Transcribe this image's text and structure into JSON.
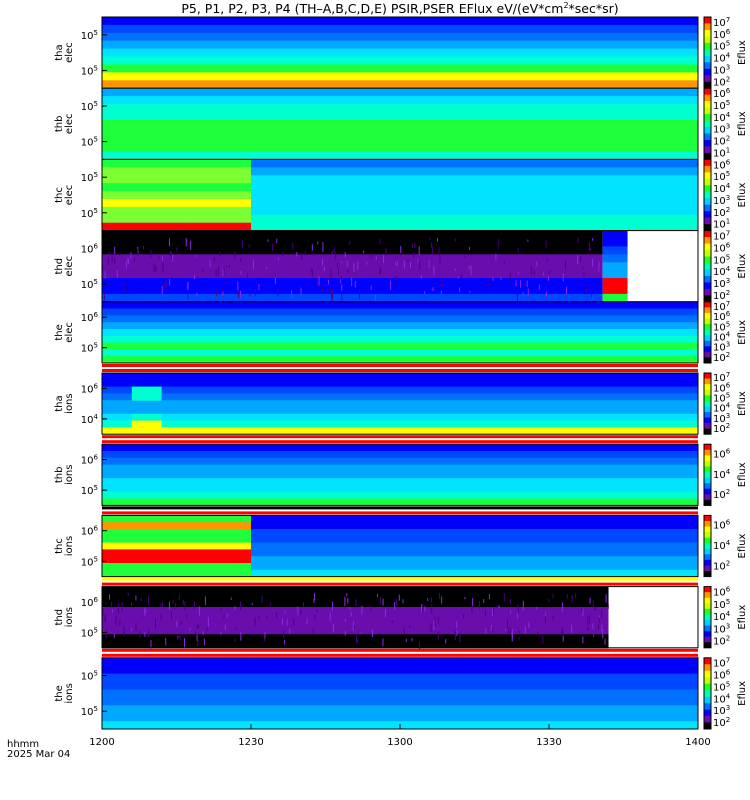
{
  "title_parts": [
    "P5, P1, P2, P3, P4 (TH–A,B,C,D,E) PSIR,PSER EFlux eV/(eV*cm",
    "2",
    "*sec*sr)"
  ],
  "time_axis": {
    "labels": [
      "1200",
      "1230",
      "1300",
      "1330",
      "1400"
    ],
    "label_fracs": [
      0,
      0.25,
      0.5,
      0.75,
      1
    ],
    "name": "hhmm",
    "date": "2025 Mar 04"
  },
  "colors": {
    "black": "#000000",
    "white": "#ffffff",
    "purple": "#6a0dad",
    "blue": "#0000ff",
    "blue2": "#0048ff",
    "blue3": "#0070ff",
    "ltblue": "#00a8ff",
    "cyan": "#00e4ff",
    "aqua": "#00ffd0",
    "green": "#1eff3c",
    "lgreen": "#7cff32",
    "yellow": "#ffff00",
    "orange": "#ff9600",
    "red": "#ff0000"
  },
  "chart_data": [
    {
      "type": "heatmap",
      "probe": "tha",
      "species": "elec",
      "ylabel": [
        "tha",
        "elec"
      ],
      "y_ticks": [
        {
          "base": "10",
          "exp": "5"
        },
        {
          "base": "10",
          "exp": "5"
        }
      ],
      "colorbar_ticks": [
        {
          "base": "10",
          "exp": "7"
        },
        {
          "base": "10",
          "exp": "6"
        },
        {
          "base": "10",
          "exp": "5"
        },
        {
          "base": "10",
          "exp": "4"
        },
        {
          "base": "10",
          "exp": "3"
        },
        {
          "base": "10",
          "exp": "2"
        }
      ],
      "colorbar_label": "Eflux",
      "rows": [
        [
          "blue",
          "blue"
        ],
        [
          "blue2",
          "blue2"
        ],
        [
          "blue3",
          "blue3"
        ],
        [
          "ltblue",
          "ltblue"
        ],
        [
          "cyan",
          "cyan"
        ],
        [
          "aqua",
          "aqua"
        ],
        [
          "green",
          "green"
        ],
        [
          "yellow",
          "yellow"
        ],
        [
          "orange",
          "orange"
        ]
      ]
    },
    {
      "type": "heatmap",
      "probe": "thb",
      "species": "elec",
      "ylabel": [
        "thb",
        "elec"
      ],
      "y_ticks": [
        {
          "base": "10",
          "exp": "5"
        },
        {
          "base": "10",
          "exp": "5"
        }
      ],
      "colorbar_ticks": [
        {
          "base": "10",
          "exp": "6"
        },
        {
          "base": "10",
          "exp": "5"
        },
        {
          "base": "10",
          "exp": "4"
        },
        {
          "base": "10",
          "exp": "3"
        },
        {
          "base": "10",
          "exp": "2"
        },
        {
          "base": "10",
          "exp": "1"
        }
      ],
      "colorbar_label": "Eflux",
      "rows": [
        [
          "ltblue",
          "ltblue"
        ],
        [
          "cyan",
          "cyan"
        ],
        [
          "aqua",
          "aqua"
        ],
        [
          "aqua",
          "aqua"
        ],
        [
          "green",
          "green"
        ],
        [
          "green",
          "green"
        ],
        [
          "green",
          "green"
        ],
        [
          "green",
          "green"
        ],
        [
          "aqua",
          "aqua"
        ]
      ]
    },
    {
      "type": "heatmap",
      "probe": "thc",
      "species": "elec",
      "ylabel": [
        "thc",
        "elec"
      ],
      "y_ticks": [
        {
          "base": "10",
          "exp": "5"
        },
        {
          "base": "10",
          "exp": "5"
        }
      ],
      "colorbar_ticks": [
        {
          "base": "10",
          "exp": "6"
        },
        {
          "base": "10",
          "exp": "5"
        },
        {
          "base": "10",
          "exp": "4"
        },
        {
          "base": "10",
          "exp": "3"
        },
        {
          "base": "10",
          "exp": "2"
        },
        {
          "base": "10",
          "exp": "1"
        }
      ],
      "colorbar_label": "Eflux",
      "split": 0.25,
      "rows": [
        [
          "green",
          "blue3"
        ],
        [
          "lgreen",
          "ltblue"
        ],
        [
          "lgreen",
          "cyan"
        ],
        [
          "green",
          "cyan"
        ],
        [
          "lgreen",
          "cyan"
        ],
        [
          "yellow",
          "cyan"
        ],
        [
          "lgreen",
          "cyan"
        ],
        [
          "lgreen",
          "aqua"
        ],
        [
          "red",
          "aqua"
        ]
      ]
    },
    {
      "type": "heatmap",
      "probe": "thd",
      "species": "elec",
      "ylabel": [
        "thd",
        "elec"
      ],
      "y_ticks": [
        {
          "base": "10",
          "exp": "6"
        },
        {
          "base": "10",
          "exp": "5"
        }
      ],
      "colorbar_ticks": [
        {
          "base": "10",
          "exp": "7"
        },
        {
          "base": "10",
          "exp": "6"
        },
        {
          "base": "10",
          "exp": "5"
        },
        {
          "base": "10",
          "exp": "4"
        },
        {
          "base": "10",
          "exp": "3"
        },
        {
          "base": "10",
          "exp": "2"
        }
      ],
      "colorbar_label": "Eflux",
      "noisy": true,
      "blank_from": 0.882,
      "rows": [
        [
          "black",
          "blue"
        ],
        [
          "black",
          "blue"
        ],
        [
          "black",
          "blue2"
        ],
        [
          "purple",
          "blue3"
        ],
        [
          "purple",
          "ltblue"
        ],
        [
          "purple",
          "ltblue"
        ],
        [
          "blue",
          "red"
        ],
        [
          "blue",
          "red"
        ],
        [
          "blue2",
          "green"
        ]
      ]
    },
    {
      "type": "heatmap",
      "probe": "the",
      "species": "elec",
      "ylabel": [
        "the",
        "elec"
      ],
      "y_ticks": [
        {
          "base": "10",
          "exp": "6"
        },
        {
          "base": "10",
          "exp": "5"
        }
      ],
      "colorbar_ticks": [
        {
          "base": "10",
          "exp": "7"
        },
        {
          "base": "10",
          "exp": "6"
        },
        {
          "base": "10",
          "exp": "5"
        },
        {
          "base": "10",
          "exp": "4"
        },
        {
          "base": "10",
          "exp": "3"
        },
        {
          "base": "10",
          "exp": "2"
        }
      ],
      "colorbar_label": "Eflux",
      "stripe": [
        "red",
        "white",
        "red"
      ],
      "rows": [
        [
          "blue",
          "blue"
        ],
        [
          "blue2",
          "blue2"
        ],
        [
          "blue3",
          "blue3"
        ],
        [
          "ltblue",
          "ltblue"
        ],
        [
          "cyan",
          "cyan"
        ],
        [
          "aqua",
          "aqua"
        ],
        [
          "green",
          "green"
        ],
        [
          "aqua",
          "aqua"
        ],
        [
          "green",
          "green"
        ]
      ]
    },
    {
      "type": "heatmap",
      "probe": "tha",
      "species": "ions",
      "ylabel": [
        "tha",
        "ions"
      ],
      "y_ticks": [
        {
          "base": "10",
          "exp": "6"
        },
        {
          "base": "10",
          "exp": "4"
        }
      ],
      "colorbar_ticks": [
        {
          "base": "10",
          "exp": "7"
        },
        {
          "base": "10",
          "exp": "6"
        },
        {
          "base": "10",
          "exp": "5"
        },
        {
          "base": "10",
          "exp": "4"
        },
        {
          "base": "10",
          "exp": "3"
        },
        {
          "base": "10",
          "exp": "2"
        }
      ],
      "colorbar_label": "Eflux",
      "stripe": [
        "red",
        "white",
        "red"
      ],
      "spot": {
        "from": 0.05,
        "to": 0.1,
        "rows": [
          2,
          3,
          6,
          7,
          8
        ],
        "color": "aqua"
      },
      "rows": [
        [
          "blue",
          "blue"
        ],
        [
          "blue",
          "blue"
        ],
        [
          "blue2",
          "blue2"
        ],
        [
          "blue3",
          "blue3"
        ],
        [
          "ltblue",
          "ltblue"
        ],
        [
          "ltblue",
          "ltblue"
        ],
        [
          "cyan",
          "cyan"
        ],
        [
          "aqua",
          "aqua"
        ],
        [
          "yellow",
          "yellow"
        ]
      ]
    },
    {
      "type": "heatmap",
      "probe": "thb",
      "species": "ions",
      "ylabel": [
        "thb",
        "ions"
      ],
      "y_ticks": [
        {
          "base": "10",
          "exp": "6"
        },
        {
          "base": "10",
          "exp": "5"
        }
      ],
      "colorbar_ticks": [
        {
          "base": "10",
          "exp": "6"
        },
        {
          "base": "10",
          "exp": "4"
        },
        {
          "base": "10",
          "exp": "2"
        }
      ],
      "colorbar_label": "Eflux",
      "stripe": [
        "black",
        "white",
        "red"
      ],
      "rows": [
        [
          "blue",
          "blue"
        ],
        [
          "blue2",
          "blue2"
        ],
        [
          "blue3",
          "blue3"
        ],
        [
          "ltblue",
          "ltblue"
        ],
        [
          "ltblue",
          "ltblue"
        ],
        [
          "cyan",
          "cyan"
        ],
        [
          "cyan",
          "cyan"
        ],
        [
          "aqua",
          "aqua"
        ],
        [
          "green",
          "green"
        ]
      ]
    },
    {
      "type": "heatmap",
      "probe": "thc",
      "species": "ions",
      "ylabel": [
        "thc",
        "ions"
      ],
      "y_ticks": [
        {
          "base": "10",
          "exp": "6"
        },
        {
          "base": "10",
          "exp": "5"
        }
      ],
      "colorbar_ticks": [
        {
          "base": "10",
          "exp": "6"
        },
        {
          "base": "10",
          "exp": "4"
        },
        {
          "base": "10",
          "exp": "2"
        }
      ],
      "colorbar_label": "Eflux",
      "split": 0.25,
      "stripe": [
        "yellow",
        "white",
        "red"
      ],
      "rows": [
        [
          "green",
          "blue"
        ],
        [
          "orange",
          "blue"
        ],
        [
          "green",
          "blue2"
        ],
        [
          "green",
          "blue2"
        ],
        [
          "yellow",
          "blue3"
        ],
        [
          "red",
          "blue3"
        ],
        [
          "red",
          "ltblue"
        ],
        [
          "green",
          "ltblue"
        ],
        [
          "green",
          "cyan"
        ]
      ]
    },
    {
      "type": "heatmap",
      "probe": "thd",
      "species": "ions",
      "ylabel": [
        "thd",
        "ions"
      ],
      "y_ticks": [
        {
          "base": "10",
          "exp": "6"
        },
        {
          "base": "10",
          "exp": "5"
        }
      ],
      "colorbar_ticks": [
        {
          "base": "10",
          "exp": "6"
        },
        {
          "base": "10",
          "exp": "5"
        },
        {
          "base": "10",
          "exp": "4"
        },
        {
          "base": "10",
          "exp": "3"
        },
        {
          "base": "10",
          "exp": "2"
        }
      ],
      "colorbar_label": "Eflux",
      "noisy": true,
      "blank_from": 0.85,
      "stripe": [
        "red",
        "white",
        "red"
      ],
      "rows": [
        [
          "black",
          "black"
        ],
        [
          "black",
          "black"
        ],
        [
          "black",
          "black"
        ],
        [
          "purple",
          "purple"
        ],
        [
          "purple",
          "purple"
        ],
        [
          "purple",
          "purple"
        ],
        [
          "purple",
          "purple"
        ],
        [
          "black",
          "black"
        ],
        [
          "black",
          "black"
        ]
      ]
    },
    {
      "type": "heatmap",
      "probe": "the",
      "species": "ions",
      "ylabel": [
        "the",
        "ions"
      ],
      "y_ticks": [
        {
          "base": "10",
          "exp": "5"
        },
        {
          "base": "10",
          "exp": "5"
        }
      ],
      "colorbar_ticks": [
        {
          "base": "10",
          "exp": "7"
        },
        {
          "base": "10",
          "exp": "6"
        },
        {
          "base": "10",
          "exp": "5"
        },
        {
          "base": "10",
          "exp": "4"
        },
        {
          "base": "10",
          "exp": "3"
        },
        {
          "base": "10",
          "exp": "2"
        }
      ],
      "colorbar_label": "Eflux",
      "rows": [
        [
          "blue",
          "blue"
        ],
        [
          "blue",
          "blue"
        ],
        [
          "blue2",
          "blue2"
        ],
        [
          "blue2",
          "blue2"
        ],
        [
          "blue3",
          "blue3"
        ],
        [
          "blue3",
          "blue3"
        ],
        [
          "ltblue",
          "ltblue"
        ],
        [
          "ltblue",
          "ltblue"
        ],
        [
          "cyan",
          "cyan"
        ]
      ]
    }
  ]
}
